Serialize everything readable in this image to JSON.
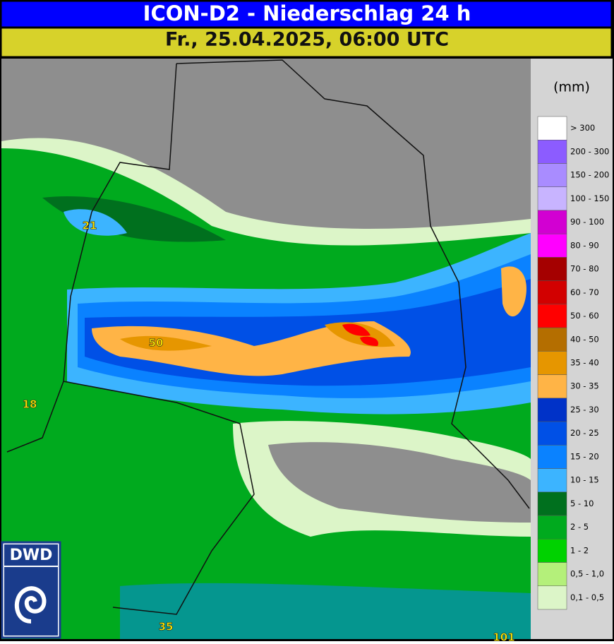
{
  "header": {
    "title": "ICON-D2 - Niederschlag 24 h",
    "subtitle": "Fr., 25.04.2025, 06:00 UTC"
  },
  "legend": {
    "unit": "(mm)",
    "items": [
      {
        "label": "> 300",
        "color": "#ffffff"
      },
      {
        "label": "200 - 300",
        "color": "#8c5cff"
      },
      {
        "label": "150 - 200",
        "color": "#a98cff"
      },
      {
        "label": "100 - 150",
        "color": "#c8b4ff"
      },
      {
        "label": "90 - 100",
        "color": "#d200d2"
      },
      {
        "label": "80 - 90",
        "color": "#ff00ff"
      },
      {
        "label": "70 - 80",
        "color": "#a50000"
      },
      {
        "label": "60 - 70",
        "color": "#d20000"
      },
      {
        "label": "50 - 60",
        "color": "#ff0000"
      },
      {
        "label": "40 - 50",
        "color": "#b46e00"
      },
      {
        "label": "35 - 40",
        "color": "#e69600"
      },
      {
        "label": "30 - 35",
        "color": "#ffb446"
      },
      {
        "label": "25 - 30",
        "color": "#0032c8"
      },
      {
        "label": "20 - 25",
        "color": "#0050e6"
      },
      {
        "label": "15 - 20",
        "color": "#0a82ff"
      },
      {
        "label": "10 - 15",
        "color": "#3cb4ff"
      },
      {
        "label": "5 - 10",
        "color": "#00701e"
      },
      {
        "label": "2 - 5",
        "color": "#00aa1e"
      },
      {
        "label": "1 - 2",
        "color": "#00d200"
      },
      {
        "label": "0,5 - 1,0",
        "color": "#b4f07a"
      },
      {
        "label": "0,1 - 0,5",
        "color": "#dcf5c8"
      }
    ]
  },
  "map_labels": [
    21,
    50,
    18,
    35,
    101
  ],
  "logo": {
    "text": "DWD"
  }
}
